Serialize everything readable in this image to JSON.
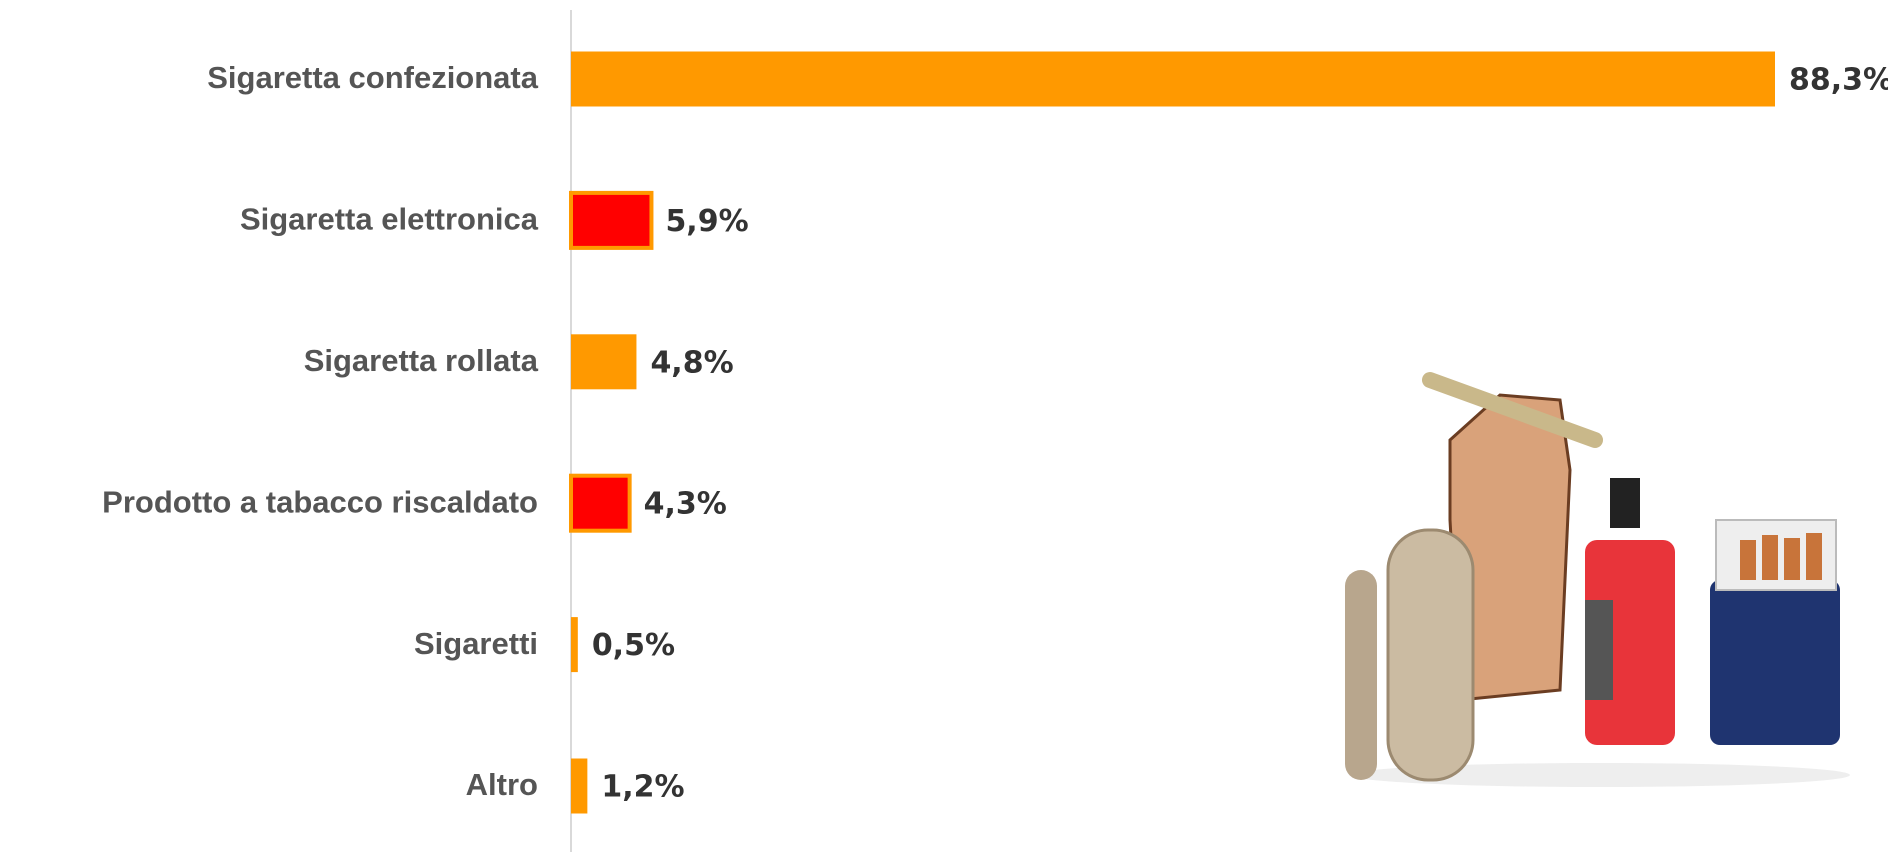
{
  "chart_data": {
    "type": "hbar",
    "categories": [
      "Sigaretta confezionata",
      "Sigaretta elettronica",
      "Sigaretta rollata",
      "Prodotto a tabacco riscaldato",
      "Sigaretti",
      "Altro"
    ],
    "values": [
      88.3,
      5.9,
      4.8,
      4.3,
      0.5,
      1.2
    ],
    "value_labels": [
      "88,3%",
      "5,9%",
      "4,8%",
      "4,3%",
      "0,5%",
      "1,2%"
    ],
    "colors": [
      "#ff9900",
      "#ff0000",
      "#ff9900",
      "#ff0000",
      "#ff9900",
      "#ff9900"
    ],
    "border_color": "#ff9900"
  }
}
